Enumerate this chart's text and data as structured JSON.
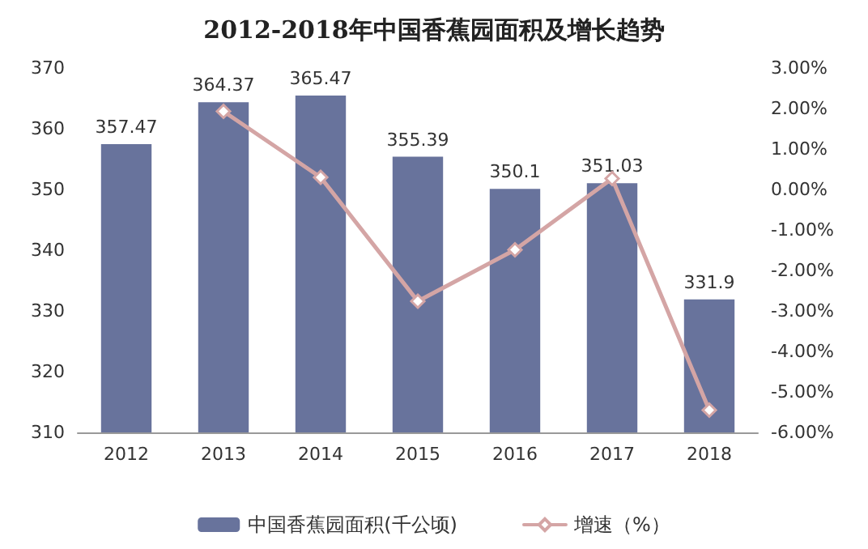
{
  "chart_data": {
    "type": "bar",
    "title": "2012-2018年中国香蕉园面积及增长趋势",
    "categories": [
      "2012",
      "2013",
      "2014",
      "2015",
      "2016",
      "2017",
      "2018"
    ],
    "series": [
      {
        "name": "中国香蕉园面积(千公顷)",
        "color": "#68739c",
        "values": [
          357.47,
          364.37,
          365.47,
          355.39,
          350.1,
          351.03,
          331.9
        ],
        "value_labels": [
          "357.47",
          "364.37",
          "365.47",
          "355.39",
          "350.1",
          "351.03",
          "331.9"
        ]
      },
      {
        "name": "增速（%）",
        "type": "line",
        "axis": "y2",
        "color": "#d4a5a5",
        "marker": "diamond",
        "values": [
          null,
          1.93,
          0.3,
          -2.76,
          -1.49,
          0.27,
          -5.45
        ]
      }
    ],
    "ylim": [
      310,
      370
    ],
    "yticks": [
      310,
      320,
      330,
      340,
      350,
      360,
      370
    ],
    "y2lim": [
      -6,
      3
    ],
    "y2ticks": [
      {
        "value": -6,
        "label": "-6.00%"
      },
      {
        "value": -5,
        "label": "-5.00%"
      },
      {
        "value": -4,
        "label": "-4.00%"
      },
      {
        "value": -3,
        "label": "-3.00%"
      },
      {
        "value": -2,
        "label": "-2.00%"
      },
      {
        "value": -1,
        "label": "-1.00%"
      },
      {
        "value": 0,
        "label": "0.00%"
      },
      {
        "value": 1,
        "label": "1.00%"
      },
      {
        "value": 2,
        "label": "2.00%"
      },
      {
        "value": 3,
        "label": "3.00%"
      }
    ],
    "grid": false,
    "legend": "bottom"
  }
}
